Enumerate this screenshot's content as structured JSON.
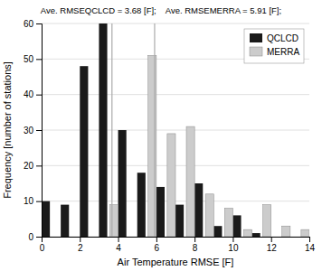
{
  "chart_data": {
    "type": "bar",
    "title": "Ave. RMSEQCLCD = 3.68 [F];    Ave. RMSEMERRA = 5.91 [F];",
    "xlabel": "Air Temperature RMSE [F]",
    "ylabel": "Frequency [number of stations]",
    "series": [
      {
        "name": "QCLCD",
        "color": "#1a1a1a",
        "x": [
          0,
          1,
          2,
          3,
          4,
          5,
          6,
          7,
          8,
          9,
          10,
          11
        ],
        "values": [
          10,
          9,
          48,
          60,
          30,
          18,
          14,
          9,
          15,
          3,
          6,
          1
        ]
      },
      {
        "name": "MERRA",
        "color": "#cccccc",
        "x": [
          3,
          5,
          6,
          7,
          8,
          9,
          10,
          11,
          12,
          13
        ],
        "values": [
          9,
          51,
          29,
          31,
          12,
          8,
          2,
          9,
          3,
          2
        ]
      }
    ],
    "mean_lines": {
      "x": [
        3.68,
        5.91
      ],
      "color": "#aaaaaa"
    },
    "xlim": [
      0,
      14
    ],
    "ylim": [
      0,
      60
    ],
    "xticks": [
      0,
      2,
      4,
      6,
      8,
      10,
      12,
      14
    ],
    "yticks": [
      0,
      10,
      20,
      30,
      40,
      50,
      60
    ],
    "grid": "y",
    "legend": "upper right"
  }
}
